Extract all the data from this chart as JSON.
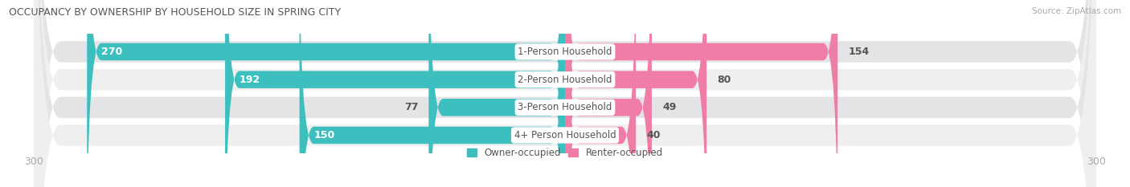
{
  "title": "OCCUPANCY BY OWNERSHIP BY HOUSEHOLD SIZE IN SPRING CITY",
  "source": "Source: ZipAtlas.com",
  "categories": [
    "1-Person Household",
    "2-Person Household",
    "3-Person Household",
    "4+ Person Household"
  ],
  "owner_values": [
    270,
    192,
    77,
    150
  ],
  "renter_values": [
    154,
    80,
    49,
    40
  ],
  "owner_color": "#3dbfbf",
  "renter_color": "#f07ca8",
  "row_bg_color_dark": "#e4e4e6",
  "row_bg_color_light": "#efefef",
  "xlim": 300,
  "owner_label_white_threshold": 100,
  "renter_label_white_threshold": 999,
  "axis_label_color": "#aaaaaa",
  "title_color": "#555555",
  "source_color": "#aaaaaa",
  "value_label_dark": "#555555",
  "center_label_color": "#555555",
  "legend_label_color": "#555555",
  "figsize": [
    14.06,
    2.33
  ],
  "dpi": 100
}
